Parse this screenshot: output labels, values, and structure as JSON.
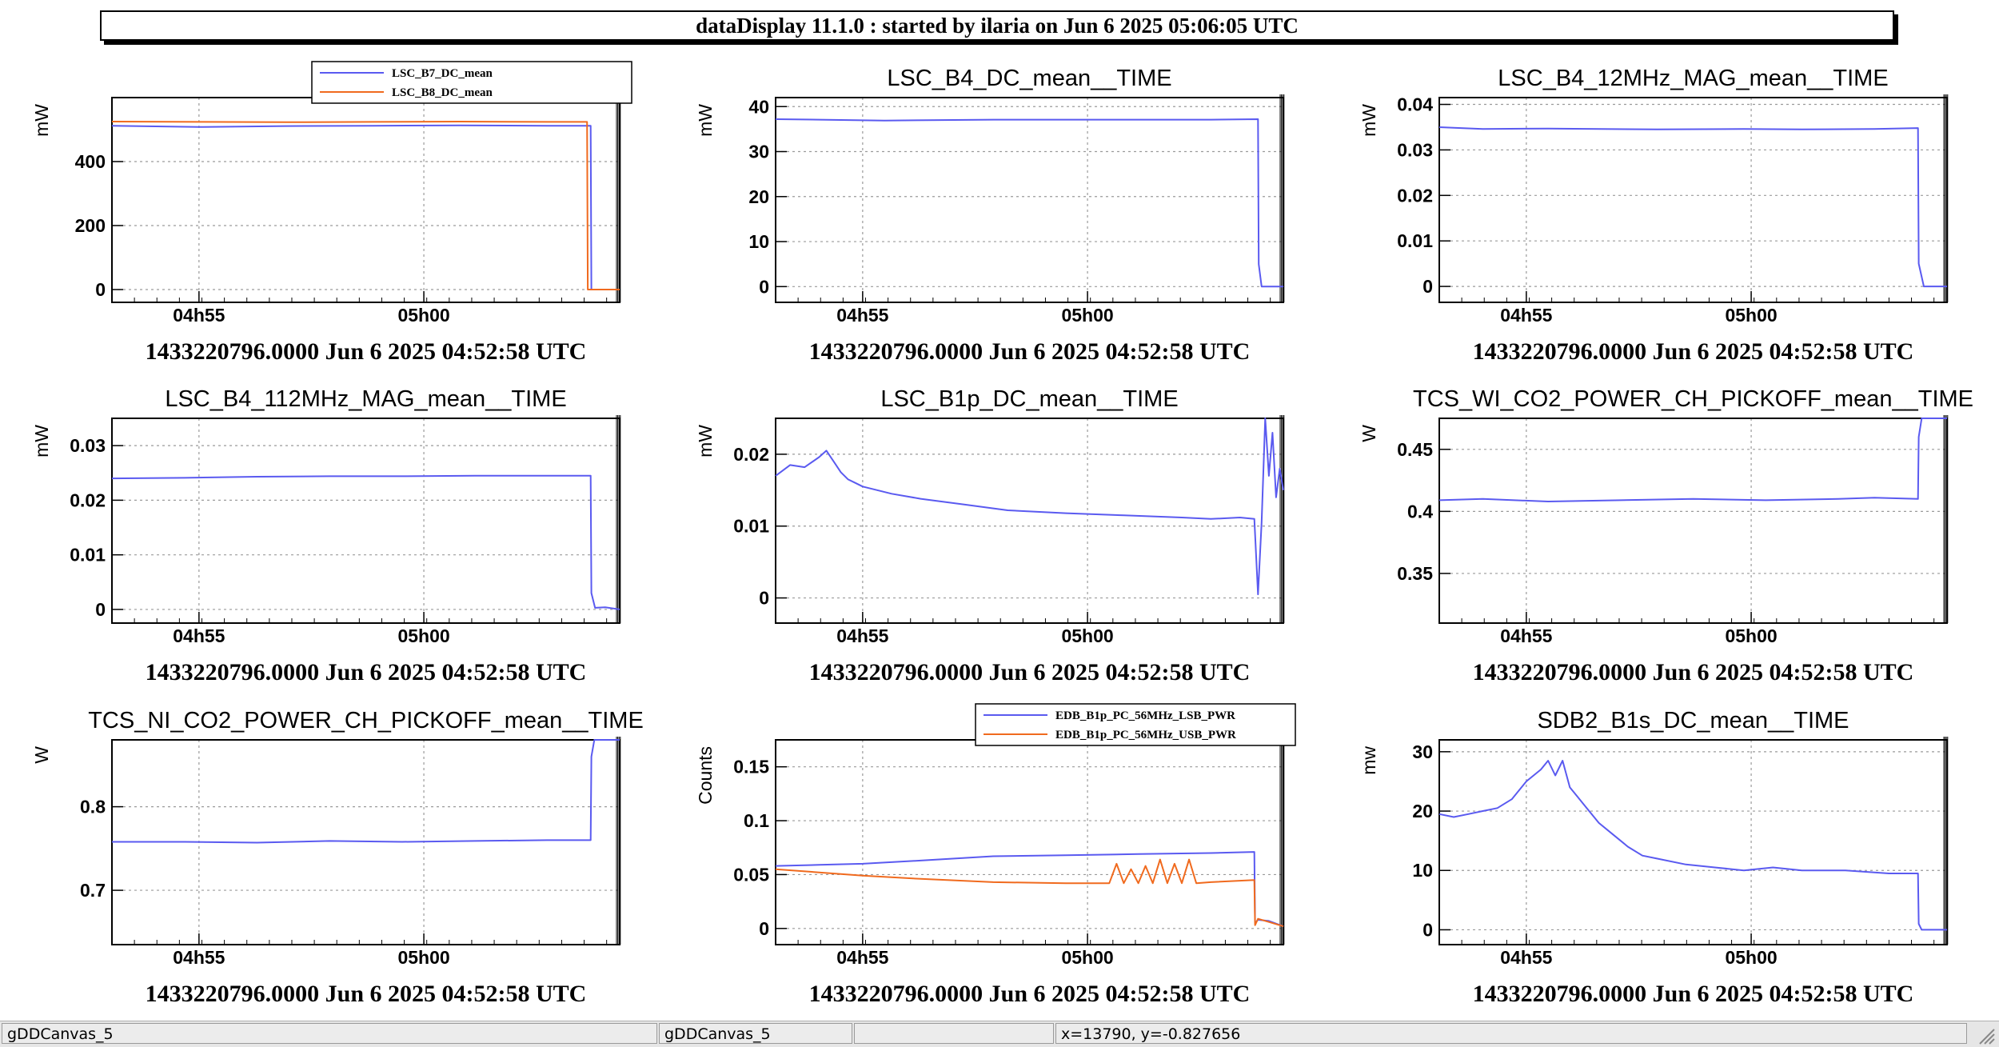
{
  "window": {
    "title": "dataDisplay 11.1.0 : started by ilaria on Jun  6 2025 05:06:05 UTC"
  },
  "statusbar": {
    "cells": [
      "gDDCanvas_5",
      "gDDCanvas_5",
      "",
      "x=13790, y=-0.827656"
    ]
  },
  "colors": {
    "blue": "#5a5af0",
    "orange": "#f06a1e",
    "grid": "#9a9a9a"
  },
  "chart_data": [
    {
      "type": "line",
      "title": "",
      "ylabel": "mW",
      "xticks": [
        "04h55",
        "05h00"
      ],
      "yticks": [
        "0",
        "200",
        "400"
      ],
      "ylim": [
        -40,
        600
      ],
      "footer": "1433220796.0000 Jun 6 2025 04:52:58 UTC",
      "legend": {
        "placement": "top",
        "entries": [
          "LSC_B7_DC_mean",
          "LSC_B8_DC_mean"
        ]
      },
      "series": [
        {
          "name": "LSC_B7_DC_mean",
          "color": "blue",
          "x": [
            0,
            60,
            120,
            240,
            360,
            480,
            600,
            650,
            660,
            661,
            700
          ],
          "y": [
            512,
            510,
            508,
            511,
            512,
            513,
            512,
            512,
            512,
            0,
            0
          ]
        },
        {
          "name": "LSC_B8_DC_mean",
          "color": "orange",
          "x": [
            0,
            120,
            240,
            360,
            480,
            600,
            655,
            656,
            700
          ],
          "y": [
            525,
            524,
            523,
            524,
            525,
            524,
            524,
            0,
            0
          ]
        }
      ]
    },
    {
      "type": "line",
      "title": "LSC_B4_DC_mean__TIME",
      "ylabel": "mW",
      "xticks": [
        "04h55",
        "05h00"
      ],
      "yticks": [
        "0",
        "10",
        "20",
        "30",
        "40"
      ],
      "ylim": [
        -3.5,
        42
      ],
      "footer": "1433220796.0000 Jun 6 2025 04:52:58 UTC",
      "series": [
        {
          "name": "",
          "color": "blue",
          "x": [
            0,
            60,
            150,
            300,
            450,
            600,
            665,
            666,
            670,
            700
          ],
          "y": [
            37.2,
            37.1,
            36.9,
            37.1,
            37.1,
            37.1,
            37.2,
            5,
            0,
            0
          ]
        }
      ]
    },
    {
      "type": "line",
      "title": "LSC_B4_12MHz_MAG_mean__TIME",
      "ylabel": "mW",
      "xticks": [
        "04h55",
        "05h00"
      ],
      "yticks": [
        "0",
        "0.01",
        "0.02",
        "0.03",
        "0.04"
      ],
      "ylim": [
        -0.0035,
        0.0415
      ],
      "footer": "1433220796.0000 Jun 6 2025 04:52:58 UTC",
      "series": [
        {
          "name": "",
          "color": "blue",
          "x": [
            0,
            60,
            150,
            300,
            420,
            500,
            600,
            660,
            661,
            668,
            700
          ],
          "y": [
            0.035,
            0.0346,
            0.0347,
            0.0345,
            0.0346,
            0.0345,
            0.0346,
            0.0348,
            0.005,
            0,
            0
          ]
        }
      ]
    },
    {
      "type": "line",
      "title": "LSC_B4_112MHz_MAG_mean__TIME",
      "ylabel": "mW",
      "xticks": [
        "04h55",
        "05h00"
      ],
      "yticks": [
        "0",
        "0.01",
        "0.02",
        "0.03"
      ],
      "ylim": [
        -0.0025,
        0.035
      ],
      "footer": "1433220796.0000 Jun 6 2025 04:52:58 UTC",
      "series": [
        {
          "name": "",
          "color": "blue",
          "x": [
            0,
            100,
            200,
            300,
            400,
            500,
            600,
            660,
            661,
            666,
            680,
            700
          ],
          "y": [
            0.024,
            0.0241,
            0.0243,
            0.0244,
            0.0244,
            0.0245,
            0.0245,
            0.0245,
            0.003,
            0.0003,
            0.0004,
            0
          ]
        }
      ]
    },
    {
      "type": "line",
      "title": "LSC_B1p_DC_mean__TIME",
      "ylabel": "mW",
      "xticks": [
        "04h55",
        "05h00"
      ],
      "yticks": [
        "0",
        "0.01",
        "0.02"
      ],
      "ylim": [
        -0.0035,
        0.025
      ],
      "footer": "1433220796.0000 Jun 6 2025 04:52:58 UTC",
      "series": [
        {
          "name": "",
          "color": "blue",
          "x": [
            0,
            20,
            40,
            60,
            70,
            80,
            90,
            100,
            110,
            120,
            140,
            160,
            200,
            260,
            320,
            400,
            480,
            560,
            600,
            640,
            660,
            665,
            670,
            675,
            680,
            685,
            690,
            695,
            700
          ],
          "y": [
            0.017,
            0.0185,
            0.0182,
            0.0196,
            0.0205,
            0.019,
            0.0175,
            0.0165,
            0.016,
            0.0155,
            0.015,
            0.0145,
            0.0138,
            0.013,
            0.0122,
            0.0118,
            0.0115,
            0.0112,
            0.011,
            0.0112,
            0.011,
            0.0005,
            0.0105,
            0.025,
            0.017,
            0.023,
            0.014,
            0.018,
            0.015
          ]
        }
      ]
    },
    {
      "type": "line",
      "title": "TCS_WI_CO2_POWER_CH_PICKOFF_mean__TIME",
      "ylabel": "W",
      "xticks": [
        "04h55",
        "05h00"
      ],
      "yticks": [
        "0.35",
        "0.4",
        "0.45"
      ],
      "ylim": [
        0.31,
        0.475
      ],
      "footer": "1433220796.0000 Jun 6 2025 04:52:58 UTC",
      "series": [
        {
          "name": "",
          "color": "blue",
          "x": [
            0,
            60,
            150,
            250,
            350,
            450,
            550,
            600,
            660,
            661,
            665,
            700
          ],
          "y": [
            0.409,
            0.41,
            0.408,
            0.409,
            0.41,
            0.409,
            0.41,
            0.411,
            0.41,
            0.46,
            0.475,
            0.475
          ]
        }
      ]
    },
    {
      "type": "line",
      "title": "TCS_NI_CO2_POWER_CH_PICKOFF_mean__TIME",
      "ylabel": "W",
      "xticks": [
        "04h55",
        "05h00"
      ],
      "yticks": [
        "0.7",
        "0.8"
      ],
      "ylim": [
        0.635,
        0.88
      ],
      "footer": "1433220796.0000 Jun 6 2025 04:52:58 UTC",
      "series": [
        {
          "name": "",
          "color": "blue",
          "x": [
            0,
            100,
            200,
            300,
            400,
            500,
            600,
            660,
            661,
            665,
            700
          ],
          "y": [
            0.758,
            0.758,
            0.757,
            0.759,
            0.758,
            0.759,
            0.76,
            0.76,
            0.86,
            0.88,
            0.88
          ]
        }
      ]
    },
    {
      "type": "line",
      "title": "",
      "ylabel": "Counts",
      "xticks": [
        "04h55",
        "05h00"
      ],
      "yticks": [
        "0",
        "0.05",
        "0.1",
        "0.15"
      ],
      "ylim": [
        -0.015,
        0.175
      ],
      "footer": "1433220796.0000 Jun 6 2025 04:52:58 UTC",
      "legend": {
        "placement": "top",
        "entries": [
          "EDB_B1p_PC_56MHz_LSB_PWR",
          "EDB_B1p_PC_56MHz_USB_PWR"
        ]
      },
      "series": [
        {
          "name": "EDB_B1p_PC_56MHz_LSB_PWR",
          "color": "blue",
          "x": [
            0,
            60,
            120,
            200,
            300,
            400,
            500,
            600,
            660,
            661,
            665,
            680,
            700
          ],
          "y": [
            0.058,
            0.059,
            0.06,
            0.063,
            0.067,
            0.068,
            0.069,
            0.07,
            0.071,
            0.005,
            0.008,
            0.007,
            0.002
          ]
        },
        {
          "name": "EDB_B1p_PC_56MHz_USB_PWR",
          "color": "orange",
          "x": [
            0,
            60,
            120,
            200,
            300,
            400,
            460,
            470,
            480,
            490,
            500,
            510,
            520,
            530,
            540,
            550,
            560,
            570,
            580,
            600,
            660,
            661,
            665,
            680,
            700
          ],
          "y": [
            0.055,
            0.052,
            0.049,
            0.046,
            0.043,
            0.042,
            0.042,
            0.06,
            0.042,
            0.055,
            0.042,
            0.058,
            0.042,
            0.064,
            0.042,
            0.06,
            0.042,
            0.064,
            0.042,
            0.043,
            0.045,
            0.003,
            0.009,
            0.006,
            0.002
          ]
        }
      ]
    },
    {
      "type": "line",
      "title": "SDB2_B1s_DC_mean__TIME",
      "ylabel": "mw",
      "xticks": [
        "04h55",
        "05h00"
      ],
      "yticks": [
        "0",
        "10",
        "20",
        "30"
      ],
      "ylim": [
        -2.5,
        32
      ],
      "footer": "1433220796.0000 Jun 6 2025 04:52:58 UTC",
      "series": [
        {
          "name": "",
          "color": "blue",
          "x": [
            0,
            20,
            40,
            60,
            80,
            100,
            120,
            140,
            150,
            160,
            170,
            180,
            190,
            200,
            220,
            240,
            260,
            280,
            300,
            340,
            380,
            420,
            460,
            500,
            560,
            620,
            660,
            661,
            665,
            700
          ],
          "y": [
            19.5,
            19.0,
            19.5,
            20.0,
            20.5,
            22.0,
            25.0,
            27.0,
            28.5,
            26.0,
            28.5,
            24.0,
            22.5,
            21.0,
            18.0,
            16.0,
            14.0,
            12.5,
            12.0,
            11.0,
            10.5,
            10.0,
            10.5,
            10.0,
            10.0,
            9.5,
            9.5,
            1.0,
            0,
            0
          ]
        }
      ]
    }
  ]
}
